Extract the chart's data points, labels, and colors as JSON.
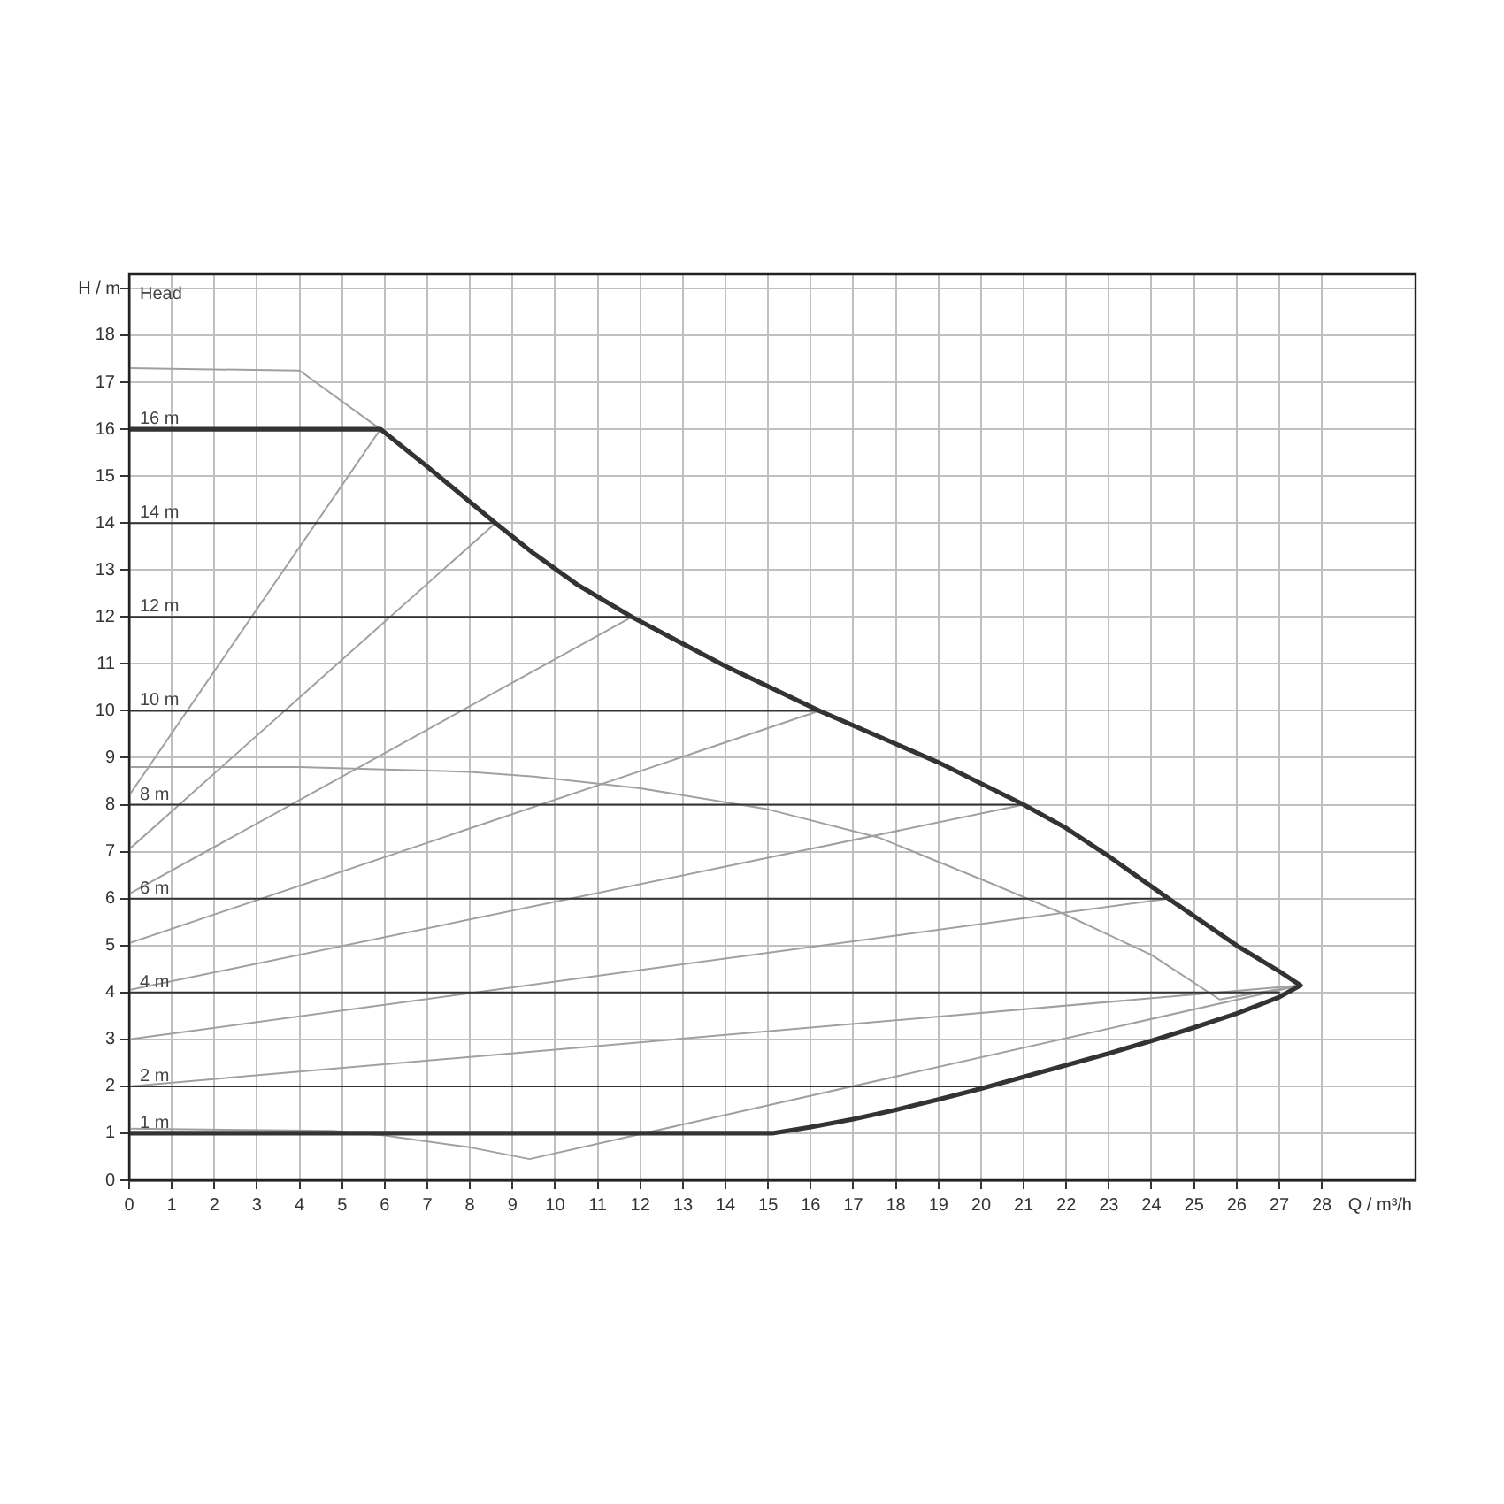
{
  "chart_data": {
    "type": "line",
    "xlabel": "Q / m³/h",
    "ylabel": "H / m",
    "grid": true,
    "legend": false,
    "marker": "none",
    "line_style": "solid",
    "xlim": [
      0,
      30.2
    ],
    "ylim": [
      0,
      19.3
    ],
    "xticks": [
      0,
      1,
      2,
      3,
      4,
      5,
      6,
      7,
      8,
      9,
      10,
      11,
      12,
      13,
      14,
      15,
      16,
      17,
      18,
      19,
      20,
      21,
      22,
      23,
      24,
      25,
      26,
      27,
      28
    ],
    "yticks": [
      0,
      1,
      2,
      3,
      4,
      5,
      6,
      7,
      8,
      9,
      10,
      11,
      12,
      13,
      14,
      15,
      16,
      17,
      18,
      {
        "value": 19,
        "label": null
      }
    ],
    "annotations": [
      "Head",
      {
        "text": "16 m",
        "y": 16
      },
      {
        "text": "14 m",
        "y": 14
      },
      {
        "text": "12 m",
        "y": 12
      },
      {
        "text": "10 m",
        "y": 10
      },
      {
        "text": "8 m",
        "y": 8
      },
      {
        "text": "6 m",
        "y": 6
      },
      {
        "text": "4 m",
        "y": 4
      },
      {
        "text": "2 m",
        "y": 2
      },
      {
        "text": "1 m",
        "y": 1
      }
    ],
    "series": [
      {
        "color": "#333333",
        "x": [
          0,
          5.9,
          7,
          8.6,
          9.5,
          10.5,
          11.8,
          14,
          16.2,
          19,
          21,
          22,
          23,
          24.4,
          26,
          27,
          27.5,
          27,
          26,
          25,
          24,
          23,
          22,
          21,
          20,
          19,
          18,
          17,
          16,
          15.1,
          0
        ],
        "values": [
          16,
          16,
          15.2,
          14,
          13.35,
          12.7,
          12,
          10.95,
          10,
          8.9,
          8,
          7.5,
          6.9,
          6,
          5,
          4.45,
          4.15,
          3.9,
          3.55,
          3.25,
          2.97,
          2.7,
          2.45,
          2.2,
          1.95,
          1.72,
          1.5,
          1.3,
          1.13,
          1,
          1
        ]
      },
      {
        "color": "#333333",
        "x": [
          0,
          8.6
        ],
        "values": [
          14,
          14
        ]
      },
      {
        "color": "#333333",
        "x": [
          0,
          11.8
        ],
        "values": [
          12,
          12
        ]
      },
      {
        "color": "#333333",
        "x": [
          0,
          16.2
        ],
        "values": [
          10,
          10
        ]
      },
      {
        "color": "#333333",
        "x": [
          0,
          21
        ],
        "values": [
          8,
          8
        ]
      },
      {
        "color": "#333333",
        "x": [
          0,
          24.4
        ],
        "values": [
          6,
          6
        ]
      },
      {
        "color": "#333333",
        "x": [
          0,
          27
        ],
        "values": [
          4,
          4
        ]
      },
      {
        "color": "#333333",
        "x": [
          0,
          20
        ],
        "values": [
          2,
          2
        ]
      },
      {
        "color": "#a0a0a0",
        "x": [
          0,
          4,
          5.9
        ],
        "values": [
          17.3,
          17.25,
          16
        ]
      },
      {
        "color": "#a0a0a0",
        "x": [
          0,
          5.9
        ],
        "values": [
          8.2,
          16
        ]
      },
      {
        "color": "#a0a0a0",
        "x": [
          0,
          8.6
        ],
        "values": [
          7.05,
          14
        ]
      },
      {
        "color": "#a0a0a0",
        "x": [
          0,
          11.8
        ],
        "values": [
          6.1,
          12
        ]
      },
      {
        "color": "#a0a0a0",
        "x": [
          0,
          16.2
        ],
        "values": [
          5.05,
          10
        ]
      },
      {
        "color": "#a0a0a0",
        "x": [
          0,
          21
        ],
        "values": [
          4.05,
          8
        ]
      },
      {
        "color": "#a0a0a0",
        "x": [
          0,
          24.4
        ],
        "values": [
          3,
          6
        ]
      },
      {
        "color": "#a0a0a0",
        "x": [
          0,
          27.5
        ],
        "values": [
          2,
          4.15
        ]
      },
      {
        "color": "#a0a0a0",
        "x": [
          0,
          4.8,
          6,
          8,
          9.4,
          27.5
        ],
        "values": [
          1.1,
          1.05,
          0.95,
          0.7,
          0.45,
          4.15
        ]
      },
      {
        "color": "#a0a0a0",
        "x": [
          0,
          4,
          6,
          8,
          9.5,
          12,
          15,
          17.6,
          20.3,
          22,
          24,
          25.6,
          27.5
        ],
        "values": [
          8.8,
          8.8,
          8.75,
          8.7,
          8.6,
          8.35,
          7.9,
          7.3,
          6.3,
          5.65,
          4.8,
          3.85,
          4.15
        ]
      }
    ]
  }
}
